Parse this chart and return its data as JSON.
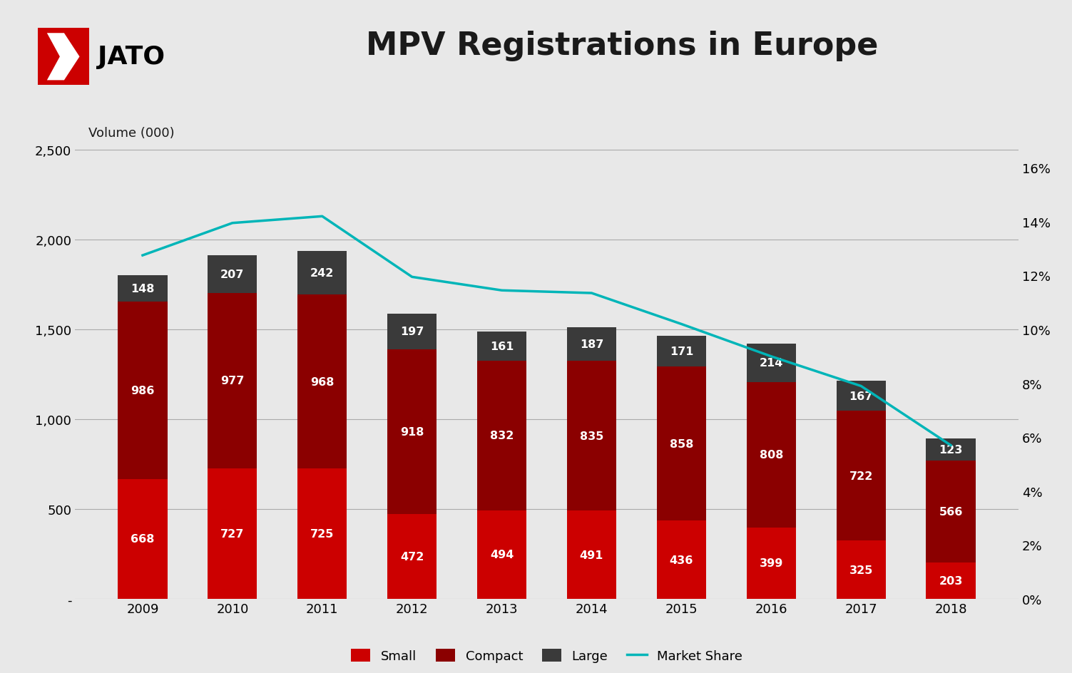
{
  "title": "MPV Registrations in Europe",
  "ylabel_left": "Volume (000)",
  "years": [
    2009,
    2010,
    2011,
    2012,
    2013,
    2014,
    2015,
    2016,
    2017,
    2018
  ],
  "small": [
    668,
    727,
    725,
    472,
    494,
    491,
    436,
    399,
    325,
    203
  ],
  "compact": [
    986,
    977,
    968,
    918,
    832,
    835,
    858,
    808,
    722,
    566
  ],
  "large": [
    148,
    207,
    242,
    197,
    161,
    187,
    171,
    214,
    167,
    123
  ],
  "market_share": [
    0.1275,
    0.1395,
    0.142,
    0.1195,
    0.1145,
    0.1135,
    0.102,
    0.09,
    0.079,
    0.057
  ],
  "color_small": "#cc0000",
  "color_compact": "#8b0000",
  "color_large": "#3a3a3a",
  "color_line": "#00b5b8",
  "color_bg": "#e8e8e8",
  "color_text": "#1a1a1a",
  "ylim_left": [
    0,
    2700
  ],
  "ylim_right": [
    0,
    0.18
  ],
  "yticks_left": [
    0,
    500,
    1000,
    1500,
    2000,
    2500
  ],
  "yticks_right": [
    0.0,
    0.02,
    0.04,
    0.06,
    0.08,
    0.1,
    0.12,
    0.14,
    0.16
  ],
  "bar_width": 0.55,
  "label_fontsize": 11.5,
  "tick_fontsize": 13,
  "legend_fontsize": 13
}
